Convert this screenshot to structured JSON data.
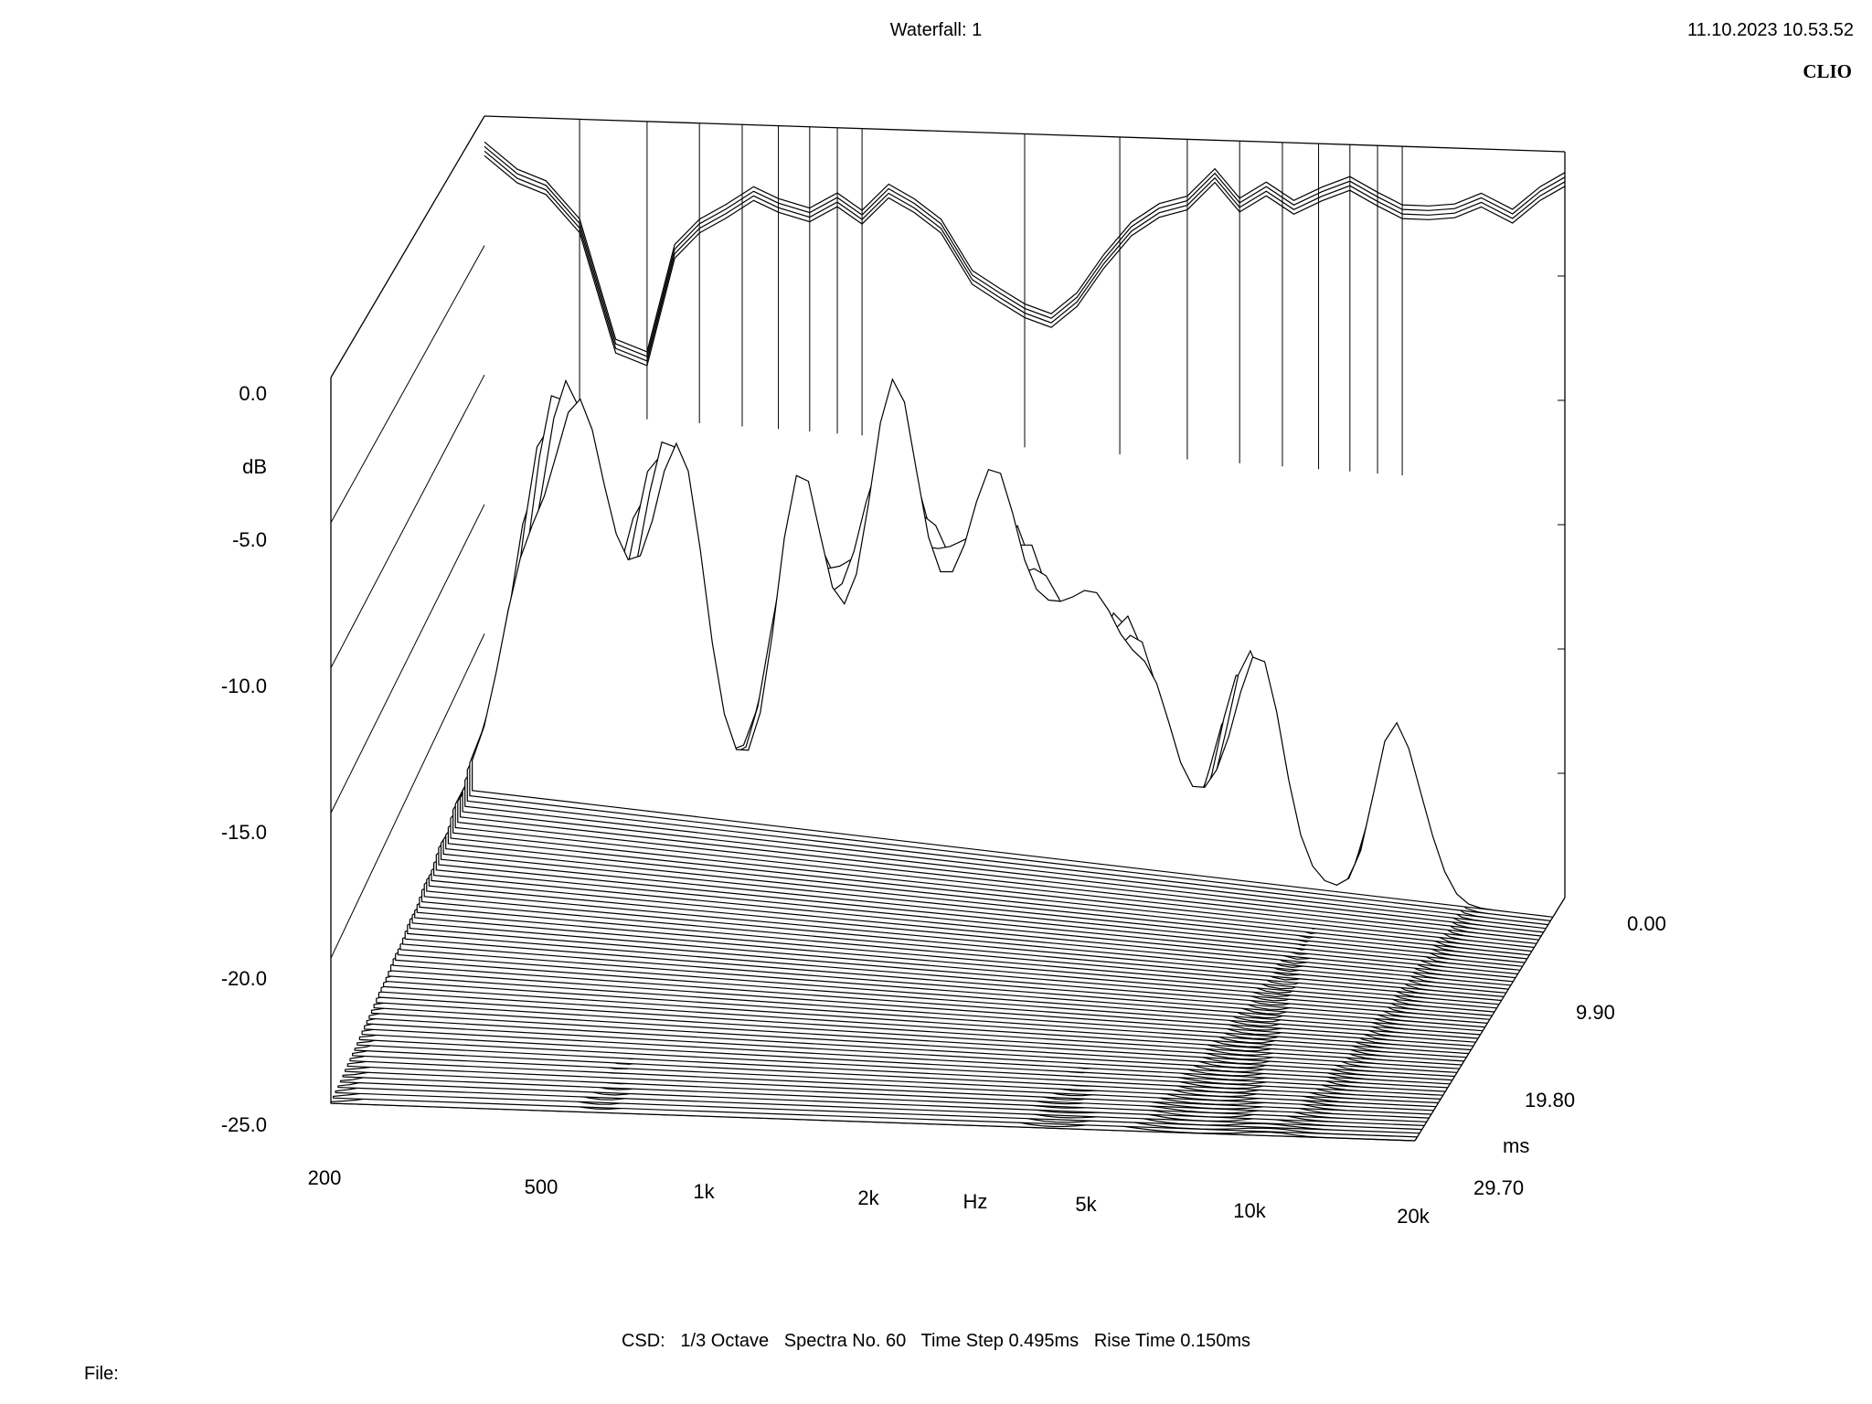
{
  "header": {
    "title": "Waterfall: 1",
    "timestamp": "11.10.2023 10.53.52",
    "brand": "CLIO"
  },
  "footer": {
    "settings": "CSD:   1/3 Octave   Spectra No. 60   Time Step 0.495ms   Rise Time 0.150ms",
    "file_label": "File:"
  },
  "chart_data": {
    "type": "waterfall",
    "x_axis": {
      "ticks": [
        "200",
        "500",
        "1k",
        "2k",
        "5k",
        "10k",
        "20k"
      ],
      "unit": "Hz",
      "range": [
        200,
        20000
      ],
      "scale": "log"
    },
    "y_axis": {
      "ticks": [
        "0.0",
        "-5.0",
        "-10.0",
        "-15.0",
        "-20.0",
        "-25.0"
      ],
      "unit": "dB",
      "range": [
        -25,
        0
      ]
    },
    "z_axis": {
      "ticks": [
        "0.00",
        "9.90",
        "19.80",
        "29.70"
      ],
      "unit": "ms",
      "range": [
        0,
        29.7
      ]
    },
    "spectra_count": 60,
    "back_curve": {
      "freq": [
        200,
        230,
        260,
        300,
        350,
        400,
        450,
        500,
        560,
        630,
        700,
        800,
        900,
        1000,
        1120,
        1250,
        1400,
        1600,
        1800,
        2000,
        2240,
        2500,
        2800,
        3150,
        3550,
        4000,
        4500,
        5000,
        5600,
        6300,
        7100,
        8000,
        9000,
        10000,
        11200,
        12500,
        14000,
        16000,
        18000,
        20000
      ],
      "db": [
        -1.0,
        -2.0,
        -2.4,
        -3.8,
        -8.3,
        -8.7,
        -4.6,
        -3.6,
        -3.0,
        -2.3,
        -2.7,
        -3.0,
        -2.4,
        -3.0,
        -2.0,
        -2.5,
        -3.2,
        -5.0,
        -5.6,
        -6.1,
        -6.4,
        -5.6,
        -4.2,
        -3.0,
        -2.3,
        -2.0,
        -1.0,
        -2.0,
        -1.4,
        -2.0,
        -1.5,
        -1.1,
        -1.6,
        -2.0,
        -2.0,
        -1.9,
        -1.5,
        -2.0,
        -1.2,
        -0.7
      ]
    }
  }
}
